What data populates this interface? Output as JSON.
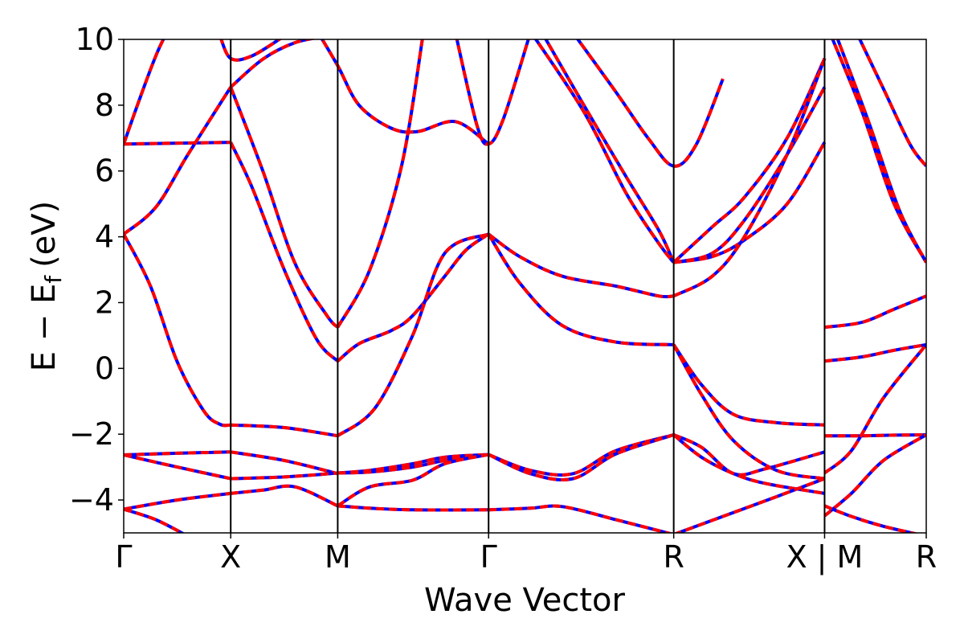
{
  "chart_data": {
    "type": "line",
    "title": "",
    "xlabel": "Wave Vector",
    "ylabel": "E − E",
    "ylabel_subscript": "f",
    "ylabel_unit": "(eV)",
    "ylim": [
      -5,
      10
    ],
    "yticks": [
      -4,
      -2,
      0,
      2,
      4,
      6,
      8,
      10
    ],
    "ytick_labels": [
      "−4",
      "−2",
      "0",
      "2",
      "4",
      "6",
      "8",
      "10"
    ],
    "xlim": [
      0,
      7.5
    ],
    "high_symmetry_points": [
      {
        "label": "Γ",
        "x": 0
      },
      {
        "label": "X",
        "x": 1
      },
      {
        "label": "M",
        "x": 2
      },
      {
        "label": "Γ",
        "x": 3.41
      },
      {
        "label": "R",
        "x": 5.14
      },
      {
        "label": "X | M",
        "x": 6.55
      },
      {
        "label": "R",
        "x": 7.5
      }
    ],
    "grid": false,
    "legend": "none",
    "colors": {
      "solid": "#ff0000",
      "dashed": "#0000ff",
      "vline": "#000000"
    },
    "segment_break_x": 6.55,
    "series": [
      {
        "x": [
          0,
          0.15,
          0.3,
          0.4
        ],
        "y": [
          6.82,
          8.2,
          9.5,
          10.2
        ]
      },
      {
        "x": [
          0,
          1
        ],
        "y": [
          6.82,
          6.87
        ]
      },
      {
        "x": [
          0,
          0.3,
          0.6,
          1
        ],
        "y": [
          4.08,
          4.9,
          6.5,
          8.55
        ]
      },
      {
        "x": [
          0,
          0.25,
          0.5,
          0.75,
          0.9,
          1
        ],
        "y": [
          4.08,
          2.5,
          0.2,
          -1.3,
          -1.7,
          -1.72
        ]
      },
      {
        "x": [
          0,
          0.5,
          1
        ],
        "y": [
          -2.63,
          -2.58,
          -2.54
        ]
      },
      {
        "x": [
          0,
          0.5,
          1
        ],
        "y": [
          -2.63,
          -3.0,
          -3.35
        ]
      },
      {
        "x": [
          0,
          0.5,
          1
        ],
        "y": [
          -4.28,
          -4.0,
          -3.8
        ]
      },
      {
        "x": [
          0,
          0.3,
          0.6
        ],
        "y": [
          -4.28,
          -4.6,
          -5.1
        ]
      },
      {
        "x": [
          0.9,
          1,
          1.2,
          1.5
        ],
        "y": [
          10.1,
          9.42,
          9.5,
          10.1
        ]
      },
      {
        "x": [
          1,
          1.3,
          1.6,
          1.9
        ],
        "y": [
          8.55,
          9.4,
          9.9,
          10.1
        ]
      },
      {
        "x": [
          1,
          1.3,
          1.6,
          1.9,
          2
        ],
        "y": [
          8.55,
          6.0,
          3.2,
          1.6,
          1.25
        ]
      },
      {
        "x": [
          1,
          1.2,
          1.5,
          1.8,
          2
        ],
        "y": [
          6.87,
          5.5,
          3.0,
          0.9,
          0.22
        ]
      },
      {
        "x": [
          1,
          1.5,
          2
        ],
        "y": [
          -1.72,
          -1.8,
          -2.05
        ]
      },
      {
        "x": [
          1,
          1.5,
          2
        ],
        "y": [
          -2.54,
          -2.8,
          -3.2
        ]
      },
      {
        "x": [
          1,
          1.5,
          2
        ],
        "y": [
          -3.35,
          -3.3,
          -3.18
        ]
      },
      {
        "x": [
          1,
          1.3,
          1.6,
          2
        ],
        "y": [
          -3.8,
          -3.7,
          -3.6,
          -4.18
        ]
      },
      {
        "x": [
          2,
          2.3,
          2.6,
          2.8
        ],
        "y": [
          1.25,
          3.0,
          6.2,
          10.2
        ]
      },
      {
        "x": [
          2,
          2.2,
          2.5,
          2.7,
          3.0,
          3.2,
          3.41
        ],
        "y": [
          0.22,
          0.75,
          1.15,
          1.6,
          2.8,
          3.6,
          4.08
        ]
      },
      {
        "x": [
          1.8,
          2,
          2.2,
          2.5,
          2.75,
          3.1,
          3.41
        ],
        "y": [
          10.3,
          9.2,
          8.0,
          7.3,
          7.2,
          7.5,
          6.82
        ]
      },
      {
        "x": [
          3.1,
          3.3,
          3.41,
          3.55,
          3.8
        ],
        "y": [
          10.2,
          7.4,
          6.82,
          7.6,
          10.2
        ]
      },
      {
        "x": [
          2,
          2.35,
          2.7,
          3.0,
          3.41
        ],
        "y": [
          -2.05,
          -1.2,
          1.0,
          3.5,
          4.08
        ]
      },
      {
        "x": [
          2,
          2.3,
          2.7,
          3.0,
          3.41
        ],
        "y": [
          -3.18,
          -3.1,
          -2.9,
          -2.7,
          -2.62
        ]
      },
      {
        "x": [
          2,
          2.3,
          2.7,
          3.0,
          3.41
        ],
        "y": [
          -3.18,
          -3.15,
          -3.0,
          -2.8,
          -2.62
        ]
      },
      {
        "x": [
          2,
          2.3,
          2.7,
          3.41
        ],
        "y": [
          -4.18,
          -4.25,
          -4.3,
          -4.3
        ]
      },
      {
        "x": [
          2,
          2.3,
          2.7,
          3.0,
          3.41
        ],
        "y": [
          -4.18,
          -3.6,
          -3.4,
          -2.9,
          -2.62
        ]
      },
      {
        "x": [
          3.41,
          3.7,
          4.1,
          4.6,
          5.0,
          5.14
        ],
        "y": [
          4.08,
          3.4,
          2.8,
          2.5,
          2.2,
          2.2
        ]
      },
      {
        "x": [
          3.41,
          3.7,
          4.1,
          4.6,
          5.14
        ],
        "y": [
          4.08,
          2.6,
          1.3,
          0.8,
          0.72
        ]
      },
      {
        "x": [
          4.2,
          4.6,
          4.9,
          5.14,
          5.35,
          5.6
        ],
        "y": [
          10.2,
          8.4,
          7.0,
          6.15,
          6.8,
          8.8
        ]
      },
      {
        "x": [
          3.91,
          4.3,
          4.7,
          5.0,
          5.14
        ],
        "y": [
          10.2,
          8.0,
          5.8,
          4.2,
          3.22
        ]
      },
      {
        "x": [
          3.81,
          4.3,
          4.7,
          5.0,
          5.14
        ],
        "y": [
          10.2,
          7.8,
          5.3,
          3.8,
          3.22
        ]
      },
      {
        "x": [
          3.41,
          3.8,
          4.2,
          4.6,
          5.14
        ],
        "y": [
          -2.62,
          -3.1,
          -3.2,
          -2.5,
          -2.02
        ]
      },
      {
        "x": [
          3.41,
          3.8,
          4.2,
          4.6,
          5.14
        ],
        "y": [
          -2.62,
          -3.2,
          -3.35,
          -2.6,
          -2.02
        ]
      },
      {
        "x": [
          3.41,
          3.8,
          4.1,
          4.6,
          5.14
        ],
        "y": [
          -4.3,
          -4.25,
          -4.2,
          -4.6,
          -5.05
        ]
      },
      {
        "x": [
          5.14,
          5.5,
          5.8,
          6.2,
          6.55
        ],
        "y": [
          3.22,
          4.3,
          5.2,
          7.0,
          9.42
        ]
      },
      {
        "x": [
          5.14,
          5.5,
          5.8,
          6.2,
          6.55
        ],
        "y": [
          3.22,
          3.5,
          4.5,
          6.5,
          8.55
        ]
      },
      {
        "x": [
          5.14,
          5.5,
          5.8,
          6.2,
          6.55
        ],
        "y": [
          3.22,
          3.4,
          3.9,
          5.0,
          6.87
        ]
      },
      {
        "x": [
          5.14,
          5.5,
          5.8,
          6.2,
          6.55
        ],
        "y": [
          2.2,
          2.8,
          4.0,
          6.5,
          9.42
        ]
      },
      {
        "x": [
          5.14,
          5.4,
          5.7,
          6.1,
          6.55
        ],
        "y": [
          0.72,
          -0.5,
          -1.4,
          -1.65,
          -1.72
        ]
      },
      {
        "x": [
          5.14,
          5.4,
          5.7,
          6.1,
          6.55
        ],
        "y": [
          0.72,
          -0.8,
          -2.2,
          -3.1,
          -3.35
        ]
      },
      {
        "x": [
          5.14,
          5.4,
          5.7,
          6.0,
          6.55
        ],
        "y": [
          -2.02,
          -2.4,
          -3.2,
          -3.05,
          -2.54
        ]
      },
      {
        "x": [
          5.14,
          5.4,
          5.7,
          6.0,
          6.55
        ],
        "y": [
          -2.02,
          -2.7,
          -3.2,
          -3.5,
          -3.8
        ]
      },
      {
        "x": [
          5.14,
          5.6,
          6.1,
          6.55
        ],
        "y": [
          -5.05,
          -4.5,
          -3.9,
          -3.35
        ]
      },
      {
        "x": [
          6.55,
          6.9,
          7.2,
          7.5
        ],
        "y": [
          1.25,
          1.4,
          1.8,
          2.2
        ]
      },
      {
        "x": [
          6.55,
          6.9,
          7.2,
          7.5
        ],
        "y": [
          0.22,
          0.35,
          0.55,
          0.72
        ]
      },
      {
        "x": [
          6.55,
          6.9,
          7.2,
          7.5
        ],
        "y": [
          -2.05,
          -2.05,
          -2.03,
          -2.02
        ]
      },
      {
        "x": [
          6.55,
          6.8,
          7.1,
          7.5
        ],
        "y": [
          -3.18,
          -2.5,
          -0.9,
          0.72
        ]
      },
      {
        "x": [
          6.55,
          6.8,
          7.1,
          7.5
        ],
        "y": [
          -4.48,
          -3.8,
          -2.8,
          -2.02
        ]
      },
      {
        "x": [
          6.55,
          6.8,
          7.1,
          7.5
        ],
        "y": [
          -4.18,
          -4.5,
          -4.8,
          -5.1
        ]
      },
      {
        "x": [
          6.6,
          6.9,
          7.2,
          7.5
        ],
        "y": [
          10.2,
          7.8,
          5.0,
          3.22
        ]
      },
      {
        "x": [
          6.65,
          6.95,
          7.25,
          7.5
        ],
        "y": [
          10.2,
          7.6,
          4.8,
          3.22
        ]
      },
      {
        "x": [
          6.85,
          7.1,
          7.35,
          7.5
        ],
        "y": [
          10.2,
          8.5,
          6.8,
          6.15
        ]
      }
    ]
  }
}
